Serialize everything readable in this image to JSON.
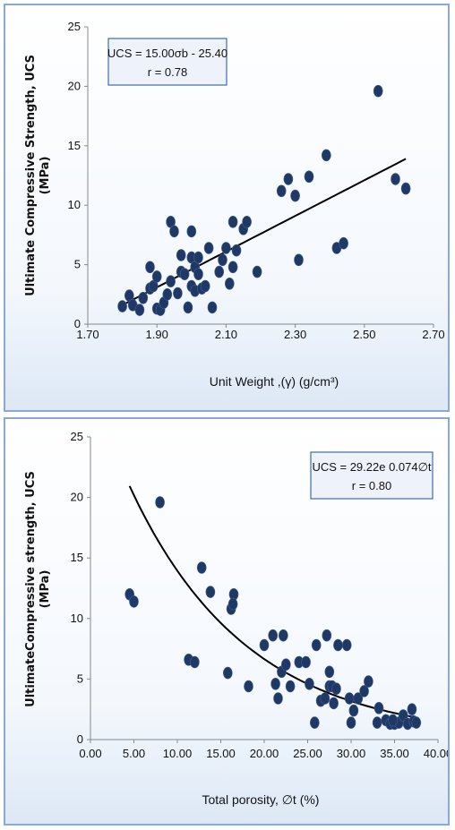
{
  "colors": {
    "marker": "#1f3864",
    "fit_line": "#000000",
    "panel_border": "#8aa9d6",
    "eq_box_border": "#3d6bb3"
  },
  "chart_data": [
    {
      "type": "scatter",
      "xlabel": "Unit Weight ,(γ) (g/cm³)",
      "ylabel_line1": "Ultimate Compressive Strength, UCS",
      "ylabel_line2": "(MPa)",
      "xlim": [
        1.7,
        2.7
      ],
      "ylim": [
        0,
        25
      ],
      "x_ticks": [
        "1.70",
        "1.90",
        "2.10",
        "2.30",
        "2.50",
        "2.70"
      ],
      "y_ticks": [
        "0",
        "5",
        "10",
        "15",
        "20",
        "25"
      ],
      "equation": "UCS = 15.00σb - 25.40",
      "r_label": "r = 0.78",
      "fit": {
        "kind": "linear",
        "slope": 15.0,
        "intercept": -25.4,
        "x_range": [
          1.8,
          2.62
        ]
      },
      "points": [
        [
          1.8,
          1.5
        ],
        [
          1.82,
          2.4
        ],
        [
          1.83,
          1.6
        ],
        [
          1.85,
          1.2
        ],
        [
          1.86,
          2.2
        ],
        [
          1.88,
          3.0
        ],
        [
          1.88,
          4.8
        ],
        [
          1.89,
          3.2
        ],
        [
          1.9,
          1.3
        ],
        [
          1.9,
          4.0
        ],
        [
          1.91,
          1.2
        ],
        [
          1.92,
          1.8
        ],
        [
          1.93,
          2.5
        ],
        [
          1.94,
          3.6
        ],
        [
          1.94,
          8.6
        ],
        [
          1.95,
          7.8
        ],
        [
          1.96,
          2.6
        ],
        [
          1.97,
          4.4
        ],
        [
          1.97,
          5.8
        ],
        [
          1.98,
          4.2
        ],
        [
          1.99,
          1.4
        ],
        [
          2.0,
          3.2
        ],
        [
          2.0,
          5.6
        ],
        [
          2.0,
          7.8
        ],
        [
          2.01,
          2.8
        ],
        [
          2.01,
          4.8
        ],
        [
          2.02,
          4.2
        ],
        [
          2.02,
          5.6
        ],
        [
          2.03,
          3.0
        ],
        [
          2.04,
          3.2
        ],
        [
          2.05,
          6.4
        ],
        [
          2.06,
          1.4
        ],
        [
          2.08,
          4.4
        ],
        [
          2.09,
          5.4
        ],
        [
          2.1,
          6.4
        ],
        [
          2.11,
          3.4
        ],
        [
          2.12,
          4.8
        ],
        [
          2.12,
          8.6
        ],
        [
          2.13,
          6.2
        ],
        [
          2.15,
          8.0
        ],
        [
          2.16,
          8.6
        ],
        [
          2.19,
          4.4
        ],
        [
          2.26,
          11.2
        ],
        [
          2.28,
          12.2
        ],
        [
          2.3,
          10.8
        ],
        [
          2.31,
          5.4
        ],
        [
          2.34,
          12.4
        ],
        [
          2.39,
          14.2
        ],
        [
          2.42,
          6.4
        ],
        [
          2.44,
          6.8
        ],
        [
          2.54,
          19.6
        ],
        [
          2.59,
          12.2
        ],
        [
          2.62,
          11.4
        ]
      ]
    },
    {
      "type": "scatter",
      "xlabel": "Total porosity, ∅t (%)",
      "ylabel_line1": "UltimateCompressive strength, UCS",
      "ylabel_line2": "(MPa)",
      "xlim": [
        0,
        40
      ],
      "ylim": [
        0,
        25
      ],
      "x_ticks": [
        "0.00",
        "5.00",
        "10.00",
        "15.00",
        "20.00",
        "25.00",
        "30.00",
        "35.00",
        "40.00"
      ],
      "y_ticks": [
        "0",
        "5",
        "10",
        "15",
        "20",
        "25"
      ],
      "equation": "UCS = 29.22e 0.074∅t",
      "r_label": "r = 0.80",
      "fit": {
        "kind": "exp",
        "a": 29.22,
        "b": -0.074,
        "x_range": [
          4.5,
          37.5
        ]
      },
      "points": [
        [
          4.5,
          12.0
        ],
        [
          5.0,
          11.4
        ],
        [
          8.0,
          19.6
        ],
        [
          11.3,
          6.6
        ],
        [
          12.0,
          6.4
        ],
        [
          12.8,
          14.2
        ],
        [
          13.8,
          12.2
        ],
        [
          15.8,
          5.5
        ],
        [
          16.2,
          10.8
        ],
        [
          16.5,
          12.0
        ],
        [
          16.4,
          11.2
        ],
        [
          18.2,
          4.4
        ],
        [
          20.0,
          7.8
        ],
        [
          21.0,
          8.6
        ],
        [
          21.3,
          4.6
        ],
        [
          21.6,
          3.4
        ],
        [
          22.0,
          5.6
        ],
        [
          22.2,
          8.6
        ],
        [
          22.5,
          6.2
        ],
        [
          23.0,
          4.4
        ],
        [
          24.0,
          6.4
        ],
        [
          24.8,
          6.4
        ],
        [
          25.2,
          4.6
        ],
        [
          25.8,
          1.4
        ],
        [
          26.0,
          7.8
        ],
        [
          26.5,
          3.2
        ],
        [
          27.2,
          8.6
        ],
        [
          27.0,
          3.4
        ],
        [
          27.5,
          4.4
        ],
        [
          27.5,
          5.6
        ],
        [
          27.8,
          4.4
        ],
        [
          28.0,
          3.0
        ],
        [
          28.5,
          7.8
        ],
        [
          28.3,
          4.2
        ],
        [
          29.5,
          7.8
        ],
        [
          29.8,
          3.4
        ],
        [
          30.0,
          1.4
        ],
        [
          30.3,
          2.4
        ],
        [
          30.8,
          3.4
        ],
        [
          31.5,
          4.0
        ],
        [
          32.0,
          4.8
        ],
        [
          33.0,
          1.4
        ],
        [
          33.2,
          2.6
        ],
        [
          34.0,
          1.6
        ],
        [
          34.5,
          1.3
        ],
        [
          35.0,
          1.3
        ],
        [
          35.5,
          1.4
        ],
        [
          36.0,
          2.0
        ],
        [
          36.5,
          1.3
        ],
        [
          37.0,
          2.5
        ],
        [
          37.2,
          1.5
        ],
        [
          37.5,
          1.4
        ],
        [
          34.8,
          1.6
        ]
      ]
    }
  ]
}
